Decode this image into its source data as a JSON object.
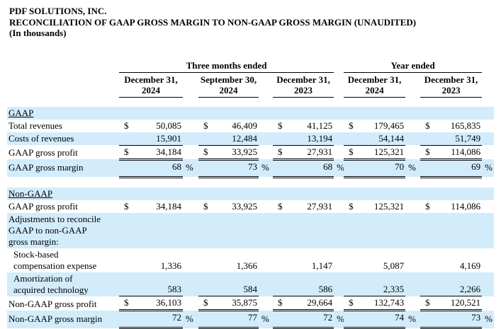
{
  "title": {
    "company": "PDF SOLUTIONS, INC.",
    "subtitle": "RECONCILIATION OF GAAP GROSS MARGIN TO NON-GAAP GROSS MARGIN (UNAUDITED)",
    "units": "(In thousands)"
  },
  "colors": {
    "row_shade": "#d2ecfb",
    "text": "#000000",
    "rule": "#000000"
  },
  "table": {
    "dollar_sign": "$",
    "percent_sign": "%",
    "groups": [
      {
        "label": "Three months ended"
      },
      {
        "label": "Year ended"
      }
    ],
    "columns": [
      {
        "line1": "December 31,",
        "line2": "2024"
      },
      {
        "line1": "September 30,",
        "line2": "2024"
      },
      {
        "line1": "December 31,",
        "line2": "2023"
      },
      {
        "line1": "December 31,",
        "line2": "2024"
      },
      {
        "line1": "December 31,",
        "line2": "2023"
      }
    ],
    "rows": [
      {
        "id": "gaap-section",
        "type": "section",
        "shaded": true,
        "label_lines": [
          "GAAP"
        ]
      },
      {
        "id": "total-revenues",
        "type": "data",
        "shaded": false,
        "dollar": true,
        "label_lines": [
          "Total revenues"
        ],
        "values": [
          "50,085",
          "46,409",
          "41,125",
          "179,465",
          "165,835"
        ]
      },
      {
        "id": "costs-of-revenues",
        "type": "data",
        "shaded": true,
        "dollar": false,
        "rule": "single",
        "label_lines": [
          "Costs of revenues"
        ],
        "values": [
          "15,901",
          "12,484",
          "13,194",
          "54,144",
          "51,749"
        ]
      },
      {
        "id": "gaap-gross-profit",
        "type": "data",
        "shaded": false,
        "dollar": true,
        "rule": "double",
        "label_lines": [
          "GAAP gross profit"
        ],
        "values": [
          "34,184",
          "33,925",
          "27,931",
          "125,321",
          "114,086"
        ]
      },
      {
        "id": "gaap-gross-margin",
        "type": "percent",
        "shaded": true,
        "rule": "double",
        "label_lines": [
          "GAAP gross margin"
        ],
        "values": [
          "68",
          "73",
          "68",
          "70",
          "69"
        ]
      },
      {
        "id": "section-gap",
        "type": "spacer"
      },
      {
        "id": "non-gaap-section",
        "type": "section",
        "shaded": true,
        "label_lines": [
          "Non-GAAP"
        ]
      },
      {
        "id": "gaap-gross-profit-2",
        "type": "data",
        "shaded": false,
        "dollar": true,
        "label_lines": [
          "GAAP gross profit"
        ],
        "values": [
          "34,184",
          "33,925",
          "27,931",
          "125,321",
          "114,086"
        ]
      },
      {
        "id": "adjustments-heading",
        "type": "labelonly",
        "shaded": true,
        "label_lines": [
          "Adjustments to reconcile",
          "GAAP to non-GAAP",
          "gross margin:"
        ]
      },
      {
        "id": "stock-based-compensation",
        "type": "data",
        "shaded": false,
        "indent": true,
        "label_lines": [
          "Stock-based",
          "compensation expense"
        ],
        "values": [
          "1,336",
          "1,366",
          "1,147",
          "5,087",
          "4,169"
        ]
      },
      {
        "id": "amortization-acquired-tech",
        "type": "data",
        "shaded": true,
        "indent": true,
        "rule": "single",
        "label_lines": [
          "Amortization of",
          "acquired technology"
        ],
        "values": [
          "583",
          "584",
          "586",
          "2,335",
          "2,266"
        ]
      },
      {
        "id": "non-gaap-gross-profit",
        "type": "data",
        "shaded": false,
        "dollar": true,
        "rule": "double",
        "label_lines": [
          "Non-GAAP gross profit"
        ],
        "values": [
          "36,103",
          "35,875",
          "29,664",
          "132,743",
          "120,521"
        ]
      },
      {
        "id": "non-gaap-gross-margin",
        "type": "percent",
        "shaded": true,
        "rule": "double",
        "label_lines": [
          "Non-GAAP gross margin"
        ],
        "values": [
          "72",
          "77",
          "72",
          "74",
          "73"
        ]
      }
    ]
  }
}
